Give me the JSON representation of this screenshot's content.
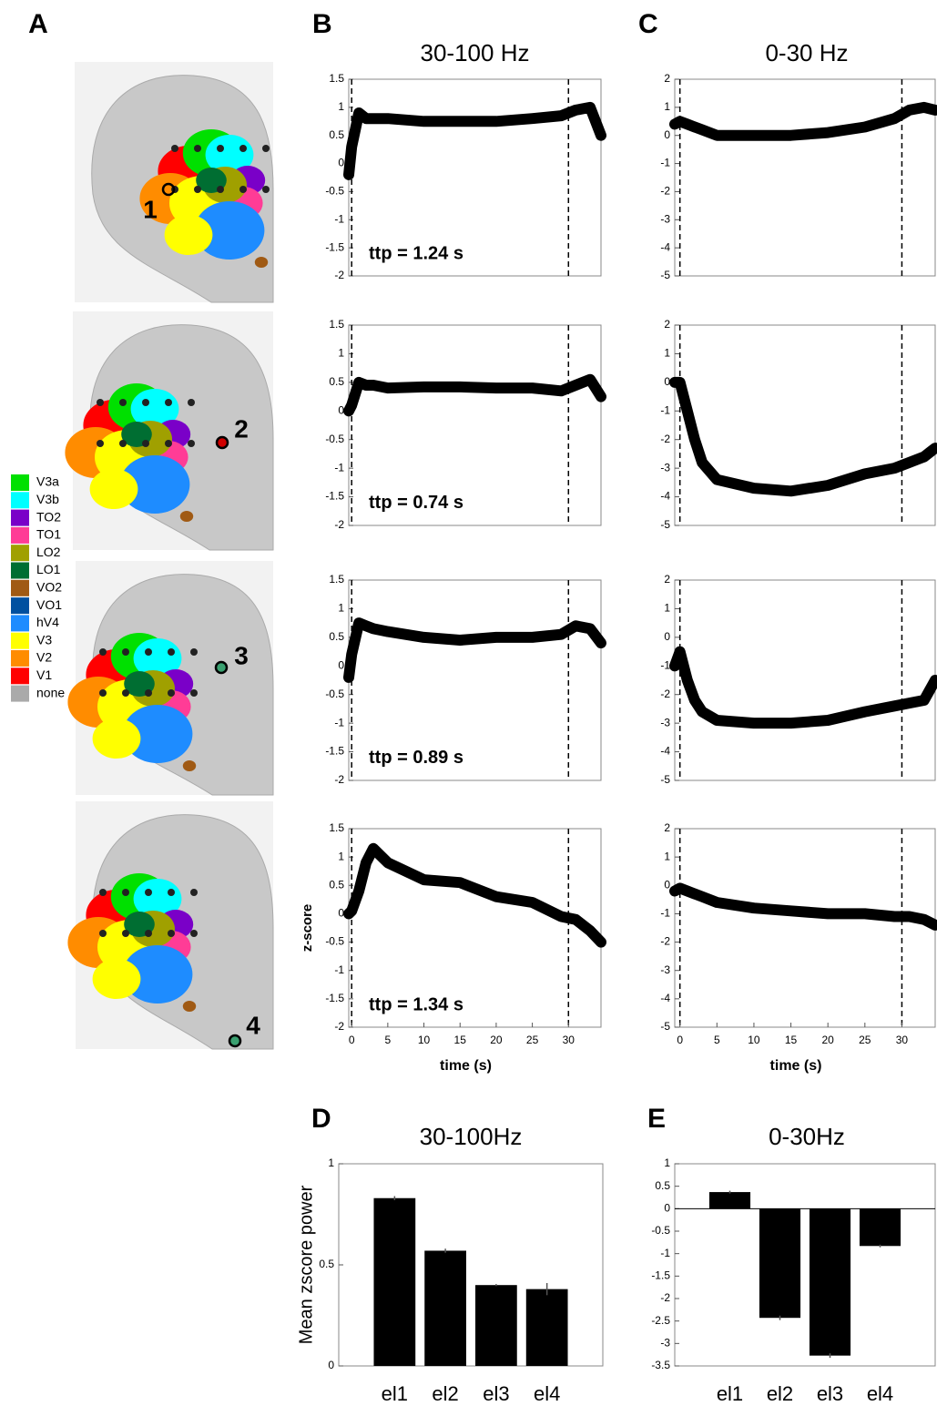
{
  "panel_a": {
    "label": "A",
    "electrodes": [
      "1",
      "2",
      "3",
      "4"
    ],
    "legend": [
      {
        "name": "V3a",
        "color": "#00e000"
      },
      {
        "name": "V3b",
        "color": "#00ffff"
      },
      {
        "name": "TO2",
        "color": "#7a00c8"
      },
      {
        "name": "TO1",
        "color": "#ff3c96"
      },
      {
        "name": "LO2",
        "color": "#a0a000"
      },
      {
        "name": "LO1",
        "color": "#006e32"
      },
      {
        "name": "VO2",
        "color": "#a05a14"
      },
      {
        "name": "VO1",
        "color": "#0050a0"
      },
      {
        "name": "hV4",
        "color": "#1e8cff"
      },
      {
        "name": "V3",
        "color": "#ffff00"
      },
      {
        "name": "V2",
        "color": "#ff8c00"
      },
      {
        "name": "V1",
        "color": "#ff0000"
      },
      {
        "name": "none",
        "color": "#aaaaaa"
      }
    ]
  },
  "chart_data": [
    {
      "type": "line",
      "panel_label": "B",
      "title": "30-100 Hz",
      "annotation": "ttp = 1.24 s",
      "color": "#000000",
      "x": [
        -0.4,
        0,
        1,
        2,
        3,
        5,
        10,
        15,
        20,
        25,
        29,
        31,
        33,
        34.5
      ],
      "values": [
        -0.2,
        0.3,
        0.9,
        0.8,
        0.8,
        0.8,
        0.75,
        0.75,
        0.75,
        0.8,
        0.85,
        0.95,
        1.0,
        0.5
      ],
      "xlim": [
        -0.4,
        34.5
      ],
      "ylim": [
        -2,
        1.5
      ],
      "yticks": [
        -2,
        -1.5,
        -1,
        -0.5,
        0,
        0.5,
        1,
        1.5
      ],
      "vlines": [
        0,
        30
      ]
    },
    {
      "type": "line",
      "annotation": "ttp = 0.74 s",
      "color": "#000000",
      "x": [
        -0.4,
        0,
        1,
        2,
        3,
        5,
        10,
        15,
        20,
        25,
        29,
        31,
        33,
        34.5
      ],
      "values": [
        0,
        0.1,
        0.5,
        0.45,
        0.45,
        0.4,
        0.42,
        0.42,
        0.4,
        0.4,
        0.35,
        0.45,
        0.55,
        0.25
      ],
      "xlim": [
        -0.4,
        34.5
      ],
      "ylim": [
        -2,
        1.5
      ],
      "yticks": [
        -2,
        -1.5,
        -1,
        -0.5,
        0,
        0.5,
        1,
        1.5
      ],
      "vlines": [
        0,
        30
      ]
    },
    {
      "type": "line",
      "annotation": "ttp = 0.89 s",
      "color": "#000000",
      "x": [
        -0.4,
        0,
        1,
        2,
        3,
        5,
        10,
        15,
        20,
        25,
        29,
        31,
        33,
        34.5
      ],
      "values": [
        -0.2,
        0.2,
        0.75,
        0.7,
        0.65,
        0.6,
        0.5,
        0.45,
        0.5,
        0.5,
        0.55,
        0.7,
        0.65,
        0.4
      ],
      "xlim": [
        -0.4,
        34.5
      ],
      "ylim": [
        -2,
        1.5
      ],
      "yticks": [
        -2,
        -1.5,
        -1,
        -0.5,
        0,
        0.5,
        1,
        1.5
      ],
      "vlines": [
        0,
        30
      ]
    },
    {
      "type": "line",
      "annotation": "ttp = 1.34 s",
      "ylabel": "z-score",
      "xlabel": "time (s)",
      "color": "#000000",
      "x": [
        -0.4,
        0,
        1,
        2,
        3,
        5,
        10,
        15,
        20,
        25,
        29,
        31,
        33,
        34.5
      ],
      "values": [
        0,
        0.05,
        0.4,
        0.9,
        1.15,
        0.9,
        0.6,
        0.55,
        0.3,
        0.2,
        -0.05,
        -0.1,
        -0.3,
        -0.5
      ],
      "xlim": [
        -0.4,
        34.5
      ],
      "xticks": [
        0,
        5,
        10,
        15,
        20,
        25,
        30
      ],
      "ylim": [
        -2,
        1.5
      ],
      "yticks": [
        -2,
        -1.5,
        -1,
        -0.5,
        0,
        0.5,
        1,
        1.5
      ],
      "vlines": [
        0,
        30
      ]
    },
    {
      "type": "line",
      "panel_label": "C",
      "title": "0-30 Hz",
      "color": "#000000",
      "x": [
        -0.7,
        0,
        1,
        2,
        3,
        5,
        10,
        15,
        20,
        25,
        29,
        31,
        33,
        34.5
      ],
      "values": [
        0.4,
        0.5,
        0.4,
        0.3,
        0.2,
        0,
        0,
        0,
        0.1,
        0.3,
        0.6,
        0.9,
        1.0,
        0.9
      ],
      "xlim": [
        -0.7,
        34.5
      ],
      "ylim": [
        -5,
        2
      ],
      "yticks": [
        -5,
        -4,
        -3,
        -2,
        -1,
        0,
        1,
        2
      ],
      "vlines": [
        0,
        30
      ]
    },
    {
      "type": "line",
      "color": "#000000",
      "x": [
        -0.7,
        0,
        1,
        2,
        3,
        5,
        10,
        15,
        20,
        25,
        29,
        31,
        33,
        34.5
      ],
      "values": [
        0,
        0,
        -1,
        -2,
        -2.8,
        -3.4,
        -3.7,
        -3.8,
        -3.6,
        -3.2,
        -3.0,
        -2.8,
        -2.6,
        -2.3
      ],
      "xlim": [
        -0.7,
        34.5
      ],
      "ylim": [
        -5,
        2
      ],
      "yticks": [
        -5,
        -4,
        -3,
        -2,
        -1,
        0,
        1,
        2
      ],
      "vlines": [
        0,
        30
      ]
    },
    {
      "type": "line",
      "color": "#000000",
      "x": [
        -0.7,
        0,
        1,
        2,
        3,
        5,
        10,
        15,
        20,
        25,
        29,
        31,
        33,
        34.5
      ],
      "values": [
        -1,
        -0.5,
        -1.5,
        -2.2,
        -2.6,
        -2.9,
        -3.0,
        -3.0,
        -2.9,
        -2.6,
        -2.4,
        -2.3,
        -2.2,
        -1.5
      ],
      "xlim": [
        -0.7,
        34.5
      ],
      "ylim": [
        -5,
        2
      ],
      "yticks": [
        -5,
        -4,
        -3,
        -2,
        -1,
        0,
        1,
        2
      ],
      "vlines": [
        0,
        30
      ]
    },
    {
      "type": "line",
      "xlabel": "time (s)",
      "color": "#000000",
      "x": [
        -0.7,
        0,
        1,
        2,
        3,
        5,
        10,
        15,
        20,
        25,
        29,
        31,
        33,
        34.5
      ],
      "values": [
        -0.2,
        -0.1,
        -0.2,
        -0.3,
        -0.4,
        -0.6,
        -0.8,
        -0.9,
        -1.0,
        -1.0,
        -1.1,
        -1.1,
        -1.2,
        -1.4
      ],
      "xlim": [
        -0.7,
        34.5
      ],
      "xticks": [
        0,
        5,
        10,
        15,
        20,
        25,
        30
      ],
      "ylim": [
        -5,
        2
      ],
      "yticks": [
        -5,
        -4,
        -3,
        -2,
        -1,
        0,
        1,
        2
      ],
      "vlines": [
        0,
        30
      ]
    },
    {
      "type": "bar",
      "panel_label": "D",
      "title": "30-100Hz",
      "ylabel": "Mean zscore power",
      "color": "#000000",
      "categories": [
        "el1",
        "el2",
        "el3",
        "el4"
      ],
      "values": [
        0.83,
        0.57,
        0.4,
        0.38
      ],
      "errors": [
        0.01,
        0.01,
        0.005,
        0.03
      ],
      "ylim": [
        0,
        1
      ],
      "yticks": [
        0,
        0.5,
        1
      ]
    },
    {
      "type": "bar",
      "panel_label": "E",
      "title": "0-30Hz",
      "color": "#000000",
      "categories": [
        "el1",
        "el2",
        "el3",
        "el4"
      ],
      "values": [
        0.37,
        -2.43,
        -3.27,
        -0.83
      ],
      "errors": [
        0.03,
        0.05,
        0.05,
        0.03
      ],
      "ylim": [
        -3.5,
        1
      ],
      "yticks": [
        -3.5,
        -3,
        -2.5,
        -2,
        -1.5,
        -1,
        -0.5,
        0,
        0.5,
        1
      ]
    }
  ]
}
